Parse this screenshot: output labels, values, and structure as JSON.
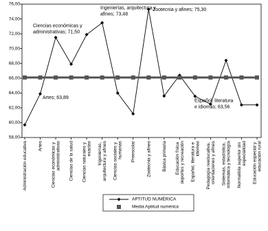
{
  "chart_data": {
    "type": "line",
    "categories": [
      "Administración educativa",
      "Artes",
      "Ciencias económicas y administrativas",
      "Ciencias de la salud",
      "Ciencias naturales y exactas",
      "Ingenierías, arquitectura y afines",
      "Ciencias sociales y humanas",
      "Preescolar",
      "Zootecnia y afines",
      "Básica primaria",
      "Educación física deportes y recreación",
      "Español, literatura e idiomas",
      "Pedagogía reeducativa, orientaciones y afines",
      "Sistemas, estadística, informática y tecnología",
      "Normalista superior sin especialidad",
      "Educación especial y educación rural"
    ],
    "series": [
      {
        "name": "APTITUD NUMÉRICA",
        "color": "#000000",
        "marker": "diamond",
        "values": [
          59.7,
          63.89,
          71.5,
          67.9,
          71.9,
          73.48,
          64.0,
          61.2,
          75.3,
          63.6,
          66.4,
          63.56,
          62.5,
          68.4,
          62.4,
          62.4
        ],
        "value_labels": [
          null,
          "Artes; 63,89",
          "Ciencias económicas y administrativas; 71,50",
          null,
          null,
          "Ingenierías, arquitectura y afines; 73,48",
          null,
          null,
          "Zootecnia y afines; 75,30",
          null,
          null,
          "Español, literatura e idiomas; 63,56",
          null,
          null,
          null,
          null
        ]
      },
      {
        "name": "Media Aptitud numérica",
        "color": "#555555",
        "marker": "square",
        "values": [
          66.1,
          66.1,
          66.1,
          66.1,
          66.1,
          66.1,
          66.1,
          66.1,
          66.1,
          66.1,
          66.1,
          66.1,
          66.1,
          66.1,
          66.1,
          66.1
        ]
      }
    ],
    "ylim": [
      58,
      76
    ],
    "yticks": [
      {
        "value": 58,
        "label": "58,00"
      },
      {
        "value": 60,
        "label": "60,00"
      },
      {
        "value": 62,
        "label": "62,00"
      },
      {
        "value": 64,
        "label": "64,00"
      },
      {
        "value": 66,
        "label": "66,00"
      },
      {
        "value": 68,
        "label": "68,00"
      },
      {
        "value": 70,
        "label": "70,00"
      },
      {
        "value": 72,
        "label": "72,00"
      },
      {
        "value": 74,
        "label": "74,00"
      },
      {
        "value": 76,
        "label": "76,00"
      }
    ],
    "grid": false,
    "legend": "bottom"
  }
}
